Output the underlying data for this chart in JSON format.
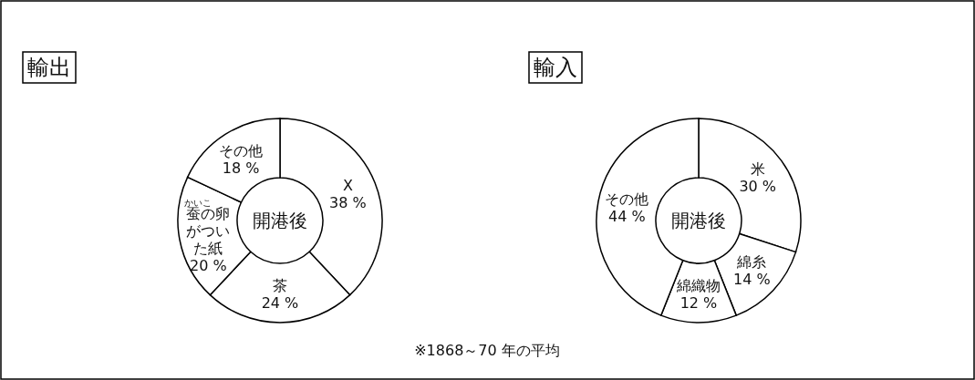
{
  "chart_data": [
    {
      "type": "donut",
      "title": "輸出",
      "categories": [
        "X",
        "茶",
        "蚕の卵がついた紙",
        "その他"
      ],
      "values": [
        38,
        24,
        20,
        18
      ],
      "colors": [
        "#ffffff",
        "#ffffff",
        "#ffffff",
        "#ffffff"
      ],
      "value_labels": [
        "38 %",
        "24 %",
        "20 %",
        "18 %"
      ],
      "annotations": [
        "開港後",
        "かいこ"
      ]
    },
    {
      "type": "donut",
      "title": "輸入",
      "categories": [
        "米",
        "綿糸",
        "綿織物",
        "その他"
      ],
      "values": [
        30,
        14,
        12,
        44
      ],
      "colors": [
        "#ffffff",
        "#ffffff",
        "#ffffff",
        "#ffffff"
      ],
      "value_labels": [
        "30 %",
        "14 %",
        "12 %",
        "44 %"
      ],
      "annotations": [
        "開港後",
        "※1868～70 年の平均"
      ]
    }
  ]
}
